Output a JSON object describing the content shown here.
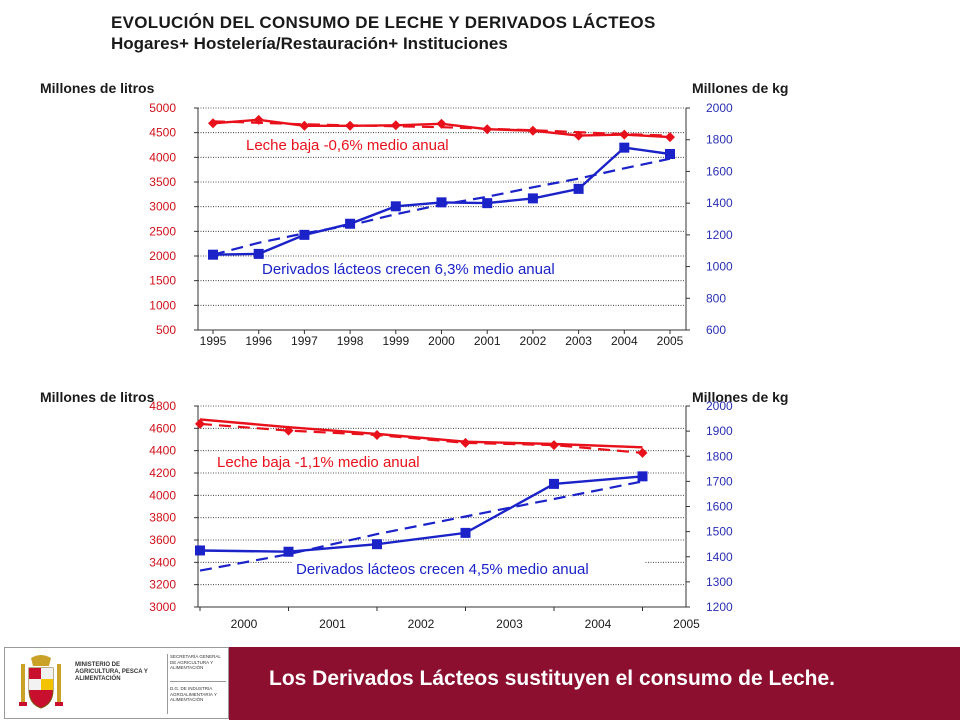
{
  "header": {
    "title": "EVOLUCIÓN DEL CONSUMO DE LECHE Y DERIVADOS LÁCTEOS",
    "subtitle": "Hogares+ Hostelería/Restauración+ Instituciones"
  },
  "colors": {
    "milk": "#e8101a",
    "dairy": "#1a22c8",
    "axis_right_text": "#2a2fb3",
    "axis_left_text": "#d0101a",
    "banner": "#8c0f2f"
  },
  "chart_data": [
    {
      "type": "line",
      "ylabel_left": "Millones de litros",
      "ylabel_right": "Millones de kg",
      "ylim_left": [
        500,
        5000
      ],
      "yticks_left": [
        500,
        1000,
        1500,
        2000,
        2500,
        3000,
        3500,
        4000,
        4500,
        5000
      ],
      "ylim_right": [
        600,
        2000
      ],
      "yticks_right": [
        600,
        800,
        1000,
        1200,
        1400,
        1600,
        1800,
        2000
      ],
      "categories": [
        "1995",
        "1996",
        "1997",
        "1998",
        "1999",
        "2000",
        "2001",
        "2002",
        "2003",
        "2004",
        "2005"
      ],
      "grid": true,
      "annotations": [
        "Leche  baja -0,6% medio anual",
        "Derivados lácteos crecen 6,3% medio anual"
      ],
      "series": [
        {
          "axis": "left",
          "style": "solid",
          "marker": "diamond",
          "color_key": "milk",
          "values": [
            4690,
            4760,
            4640,
            4640,
            4650,
            4680,
            4570,
            4540,
            4440,
            4460,
            4410
          ]
        },
        {
          "axis": "left",
          "style": "dashed",
          "color_key": "milk",
          "values": [
            4730,
            4700,
            4670,
            4650,
            4630,
            4610,
            4580,
            4550,
            4510,
            4470,
            4440
          ]
        },
        {
          "axis": "right",
          "style": "solid",
          "marker": "square",
          "color_key": "dairy",
          "values": [
            1075,
            1080,
            1200,
            1270,
            1380,
            1405,
            1400,
            1430,
            1490,
            1750,
            1710
          ]
        },
        {
          "axis": "right",
          "style": "dashed",
          "color_key": "dairy",
          "values": [
            1075,
            1150,
            1210,
            1260,
            1330,
            1390,
            1440,
            1500,
            1555,
            1620,
            1680
          ]
        }
      ]
    },
    {
      "type": "line",
      "ylabel_left": "Millones de litros",
      "ylabel_right": "Millones de kg",
      "ylim_left": [
        3000,
        4800
      ],
      "yticks_left": [
        3000,
        3200,
        3400,
        3600,
        3800,
        4000,
        4200,
        4400,
        4600,
        4800
      ],
      "ylim_right": [
        1200,
        2000
      ],
      "yticks_right": [
        1200,
        1300,
        1400,
        1500,
        1600,
        1700,
        1800,
        1900,
        2000
      ],
      "categories": [
        "2000",
        "2001",
        "2002",
        "2003",
        "2004",
        "2005"
      ],
      "grid": true,
      "annotations": [
        "Leche  baja -1,1% medio anual",
        "Derivados lácteos crecen 4,5% medio anual"
      ],
      "series": [
        {
          "axis": "left",
          "style": "solid",
          "color_key": "milk",
          "values": [
            4680,
            4610,
            4550,
            4480,
            4460,
            4430
          ]
        },
        {
          "axis": "left",
          "style": "dashed",
          "marker": "diamond",
          "color_key": "milk",
          "values": [
            4640,
            4580,
            4540,
            4470,
            4450,
            4380
          ]
        },
        {
          "axis": "right",
          "style": "solid",
          "marker": "square",
          "color_key": "dairy",
          "values": [
            1425,
            1420,
            1450,
            1495,
            1690,
            1720
          ]
        },
        {
          "axis": "right",
          "style": "dashed",
          "color_key": "dairy",
          "values": [
            1345,
            1410,
            1490,
            1560,
            1630,
            1700
          ]
        }
      ]
    }
  ],
  "footer": {
    "logo_ministry": "MINISTERIO DE AGRICULTURA, PESCA Y ALIMENTACIÓN",
    "logo_secretaria": "SECRETARÍA GENERAL DE AGRICULTURA Y ALIMENTACIÓN",
    "logo_dg": "D.G. DE INDUSTRIA AGROALIMENTARIA Y ALIMENTACIÓN",
    "logo_emblem": "shield-emblem",
    "banner_text": "Los Derivados Lácteos sustituyen el consumo de Leche."
  }
}
